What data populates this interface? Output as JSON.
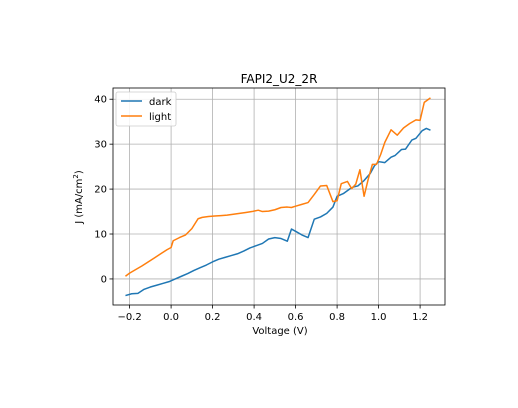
{
  "chart_data": {
    "type": "line",
    "title": "FAPI2_U2_2R",
    "xlabel": "Voltage (V)",
    "ylabel_main": "J (mA/cm",
    "ylabel_sup": "2",
    "ylabel_end": ")",
    "xlim": [
      -0.28,
      1.32
    ],
    "ylim": [
      -5.8,
      42.5
    ],
    "xticks": [
      -0.2,
      0.0,
      0.2,
      0.4,
      0.6,
      0.8,
      1.0,
      1.2
    ],
    "xtick_labels": [
      "−0.2",
      "0.0",
      "0.2",
      "0.4",
      "0.6",
      "0.8",
      "1.0",
      "1.2"
    ],
    "yticks": [
      0,
      10,
      20,
      30,
      40
    ],
    "ytick_labels": [
      "0",
      "10",
      "20",
      "30",
      "40"
    ],
    "grid": true,
    "legend": "top-left",
    "series": [
      {
        "name": "dark",
        "color": "#1f77b4",
        "x": [
          -0.22,
          -0.19,
          -0.16,
          -0.13,
          -0.1,
          -0.07,
          -0.04,
          -0.01,
          0.02,
          0.05,
          0.08,
          0.11,
          0.14,
          0.17,
          0.2,
          0.23,
          0.26,
          0.29,
          0.32,
          0.35,
          0.38,
          0.41,
          0.44,
          0.47,
          0.5,
          0.53,
          0.56,
          0.58,
          0.6,
          0.63,
          0.66,
          0.69,
          0.72,
          0.75,
          0.78,
          0.8,
          0.83,
          0.86,
          0.88,
          0.9,
          0.93,
          0.96,
          0.98,
          1.0,
          1.03,
          1.06,
          1.08,
          1.11,
          1.13,
          1.16,
          1.18,
          1.21,
          1.23,
          1.25
        ],
        "y": [
          -3.7,
          -3.3,
          -3.2,
          -2.3,
          -1.8,
          -1.4,
          -1.0,
          -0.6,
          0.0,
          0.6,
          1.2,
          1.9,
          2.5,
          3.1,
          3.8,
          4.4,
          4.8,
          5.2,
          5.6,
          6.2,
          6.9,
          7.4,
          7.9,
          8.9,
          9.2,
          9.0,
          8.4,
          11.1,
          10.6,
          9.8,
          9.2,
          13.3,
          13.8,
          14.6,
          16.0,
          18.4,
          19.0,
          20.0,
          20.5,
          20.7,
          21.9,
          23.5,
          25.2,
          26.1,
          25.9,
          27.1,
          27.5,
          28.8,
          28.9,
          30.9,
          31.3,
          33.0,
          33.5,
          33.1
        ]
      },
      {
        "name": "light",
        "color": "#ff7f0e",
        "x": [
          -0.22,
          -0.2,
          -0.17,
          -0.14,
          -0.11,
          -0.08,
          -0.05,
          -0.02,
          0.0,
          0.01,
          0.04,
          0.07,
          0.1,
          0.13,
          0.15,
          0.18,
          0.21,
          0.24,
          0.27,
          0.3,
          0.33,
          0.36,
          0.39,
          0.42,
          0.44,
          0.47,
          0.5,
          0.53,
          0.56,
          0.58,
          0.6,
          0.63,
          0.66,
          0.69,
          0.72,
          0.75,
          0.78,
          0.8,
          0.82,
          0.85,
          0.87,
          0.89,
          0.91,
          0.93,
          0.95,
          0.97,
          0.99,
          1.01,
          1.03,
          1.06,
          1.09,
          1.12,
          1.15,
          1.18,
          1.2,
          1.22,
          1.25
        ],
        "y": [
          0.6,
          1.3,
          2.1,
          2.9,
          3.8,
          4.7,
          5.6,
          6.5,
          7.0,
          8.5,
          9.2,
          9.8,
          11.2,
          13.4,
          13.7,
          13.9,
          14.0,
          14.1,
          14.2,
          14.4,
          14.6,
          14.8,
          15.0,
          15.3,
          15.0,
          15.1,
          15.4,
          15.9,
          16.0,
          15.9,
          16.2,
          16.6,
          17.0,
          18.8,
          20.7,
          20.8,
          17.2,
          17.4,
          21.2,
          21.7,
          20.1,
          21.1,
          24.3,
          18.4,
          22.2,
          25.5,
          25.5,
          27.7,
          30.4,
          33.2,
          32.0,
          33.6,
          34.6,
          35.4,
          35.3,
          39.3,
          40.3
        ]
      }
    ]
  }
}
